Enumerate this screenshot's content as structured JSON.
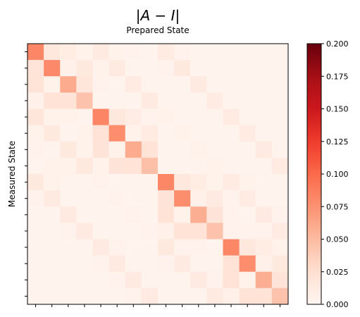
{
  "chart_data": {
    "type": "heatmap",
    "title": "|A − I|",
    "subtitle": "Prepared State",
    "xlabel": "",
    "ylabel": "Measured State",
    "rows": 16,
    "cols": 16,
    "colormap": "Reds",
    "color_low": "#fff5f0",
    "color_high": "#67000d",
    "colorbar_range": [
      0,
      0.2
    ],
    "colorbar_ticks": [
      "0.000",
      "0.025",
      "0.050",
      "0.075",
      "0.100",
      "0.125",
      "0.150",
      "0.175",
      "0.200"
    ],
    "values": [
      [
        0.082,
        0.016,
        0.01,
        0.004,
        0.013,
        0.004,
        0.003,
        0.002,
        0.012,
        0.003,
        0.002,
        0.002,
        0.002,
        0.002,
        0.002,
        0.002
      ],
      [
        0.02,
        0.08,
        0.006,
        0.014,
        0.004,
        0.013,
        0.002,
        0.002,
        0.003,
        0.014,
        0.002,
        0.002,
        0.002,
        0.002,
        0.002,
        0.002
      ],
      [
        0.022,
        0.004,
        0.06,
        0.018,
        0.003,
        0.002,
        0.012,
        0.002,
        0.002,
        0.002,
        0.013,
        0.002,
        0.002,
        0.002,
        0.002,
        0.002
      ],
      [
        0.006,
        0.022,
        0.022,
        0.045,
        0.002,
        0.002,
        0.002,
        0.013,
        0.002,
        0.002,
        0.002,
        0.012,
        0.002,
        0.002,
        0.002,
        0.002
      ],
      [
        0.018,
        0.004,
        0.004,
        0.002,
        0.083,
        0.016,
        0.009,
        0.003,
        0.004,
        0.002,
        0.002,
        0.002,
        0.012,
        0.002,
        0.002,
        0.002
      ],
      [
        0.004,
        0.014,
        0.002,
        0.004,
        0.022,
        0.078,
        0.004,
        0.012,
        0.002,
        0.004,
        0.002,
        0.002,
        0.002,
        0.012,
        0.002,
        0.002
      ],
      [
        0.003,
        0.002,
        0.014,
        0.004,
        0.02,
        0.004,
        0.06,
        0.022,
        0.002,
        0.002,
        0.004,
        0.002,
        0.002,
        0.002,
        0.013,
        0.002
      ],
      [
        0.002,
        0.004,
        0.004,
        0.014,
        0.004,
        0.02,
        0.022,
        0.047,
        0.002,
        0.002,
        0.002,
        0.004,
        0.002,
        0.002,
        0.002,
        0.012
      ],
      [
        0.014,
        0.004,
        0.002,
        0.002,
        0.003,
        0.002,
        0.002,
        0.002,
        0.082,
        0.017,
        0.01,
        0.004,
        0.012,
        0.004,
        0.002,
        0.002
      ],
      [
        0.003,
        0.013,
        0.002,
        0.002,
        0.002,
        0.003,
        0.002,
        0.002,
        0.02,
        0.078,
        0.006,
        0.013,
        0.003,
        0.012,
        0.002,
        0.002
      ],
      [
        0.002,
        0.002,
        0.013,
        0.002,
        0.002,
        0.002,
        0.003,
        0.002,
        0.022,
        0.004,
        0.058,
        0.02,
        0.003,
        0.002,
        0.013,
        0.003
      ],
      [
        0.002,
        0.002,
        0.003,
        0.013,
        0.002,
        0.002,
        0.002,
        0.003,
        0.006,
        0.022,
        0.022,
        0.045,
        0.003,
        0.003,
        0.003,
        0.012
      ],
      [
        0.002,
        0.002,
        0.002,
        0.002,
        0.013,
        0.003,
        0.002,
        0.002,
        0.014,
        0.003,
        0.003,
        0.002,
        0.082,
        0.017,
        0.01,
        0.004
      ],
      [
        0.002,
        0.002,
        0.002,
        0.002,
        0.003,
        0.013,
        0.002,
        0.002,
        0.003,
        0.013,
        0.002,
        0.002,
        0.022,
        0.078,
        0.006,
        0.014
      ],
      [
        0.002,
        0.002,
        0.002,
        0.002,
        0.002,
        0.003,
        0.013,
        0.002,
        0.002,
        0.002,
        0.013,
        0.003,
        0.022,
        0.004,
        0.058,
        0.02
      ],
      [
        0.002,
        0.002,
        0.002,
        0.002,
        0.002,
        0.002,
        0.003,
        0.013,
        0.002,
        0.002,
        0.002,
        0.013,
        0.006,
        0.022,
        0.022,
        0.045
      ]
    ]
  }
}
